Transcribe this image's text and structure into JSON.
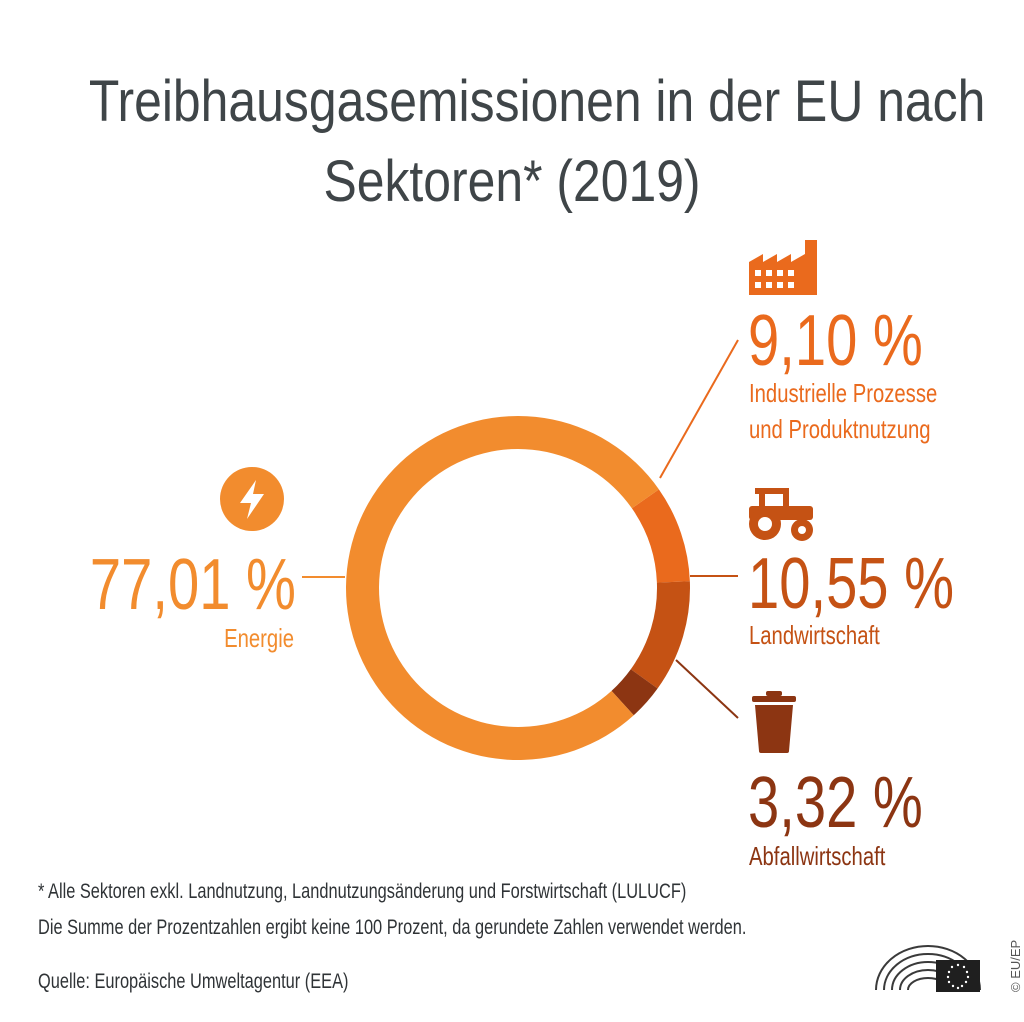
{
  "title": {
    "line1": "Treibhausgasemissionen in der EU nach",
    "line2": "Sektoren* (2019)"
  },
  "chart_data": {
    "type": "pie",
    "donut": true,
    "title": "Treibhausgasemissionen in der EU nach Sektoren* (2019)",
    "unit": "%",
    "categories": [
      "Energie",
      "Industrielle Prozesse und Produktnutzung",
      "Landwirtschaft",
      "Abfallwirtschaft"
    ],
    "values": [
      77.01,
      9.1,
      10.55,
      3.32
    ],
    "value_labels": [
      "77,01 %",
      "9,10 %",
      "10,55 %",
      "3,32 %"
    ],
    "colors": [
      "#f28c2e",
      "#ea6a1d",
      "#c55214",
      "#8c3512"
    ]
  },
  "segments": {
    "energy": {
      "value": "77,01 %",
      "label": "Energie",
      "icon": "lightning-icon"
    },
    "industry": {
      "value": "9,10 %",
      "label_line1": "Industrielle Prozesse",
      "label_line2": "und Produktnutzung",
      "icon": "factory-icon"
    },
    "agriculture": {
      "value": "10,55 %",
      "label": "Landwirtschaft",
      "icon": "tractor-icon"
    },
    "waste": {
      "value": "3,32 %",
      "label": "Abfallwirtschaft",
      "icon": "trash-bin-icon"
    }
  },
  "footnotes": {
    "note1": "* Alle Sektoren exkl. Landnutzung, Landnutzungsänderung und Forstwirtschaft (LULUCF)",
    "note2": "Die Summe der Prozentzahlen ergibt keine 100 Prozent, da gerundete Zahlen verwendet werden.",
    "source": "Quelle: Europäische Umweltagentur (EEA)"
  },
  "credit": "© EU/EP",
  "logo": {
    "icon": "european-parliament-logo"
  }
}
